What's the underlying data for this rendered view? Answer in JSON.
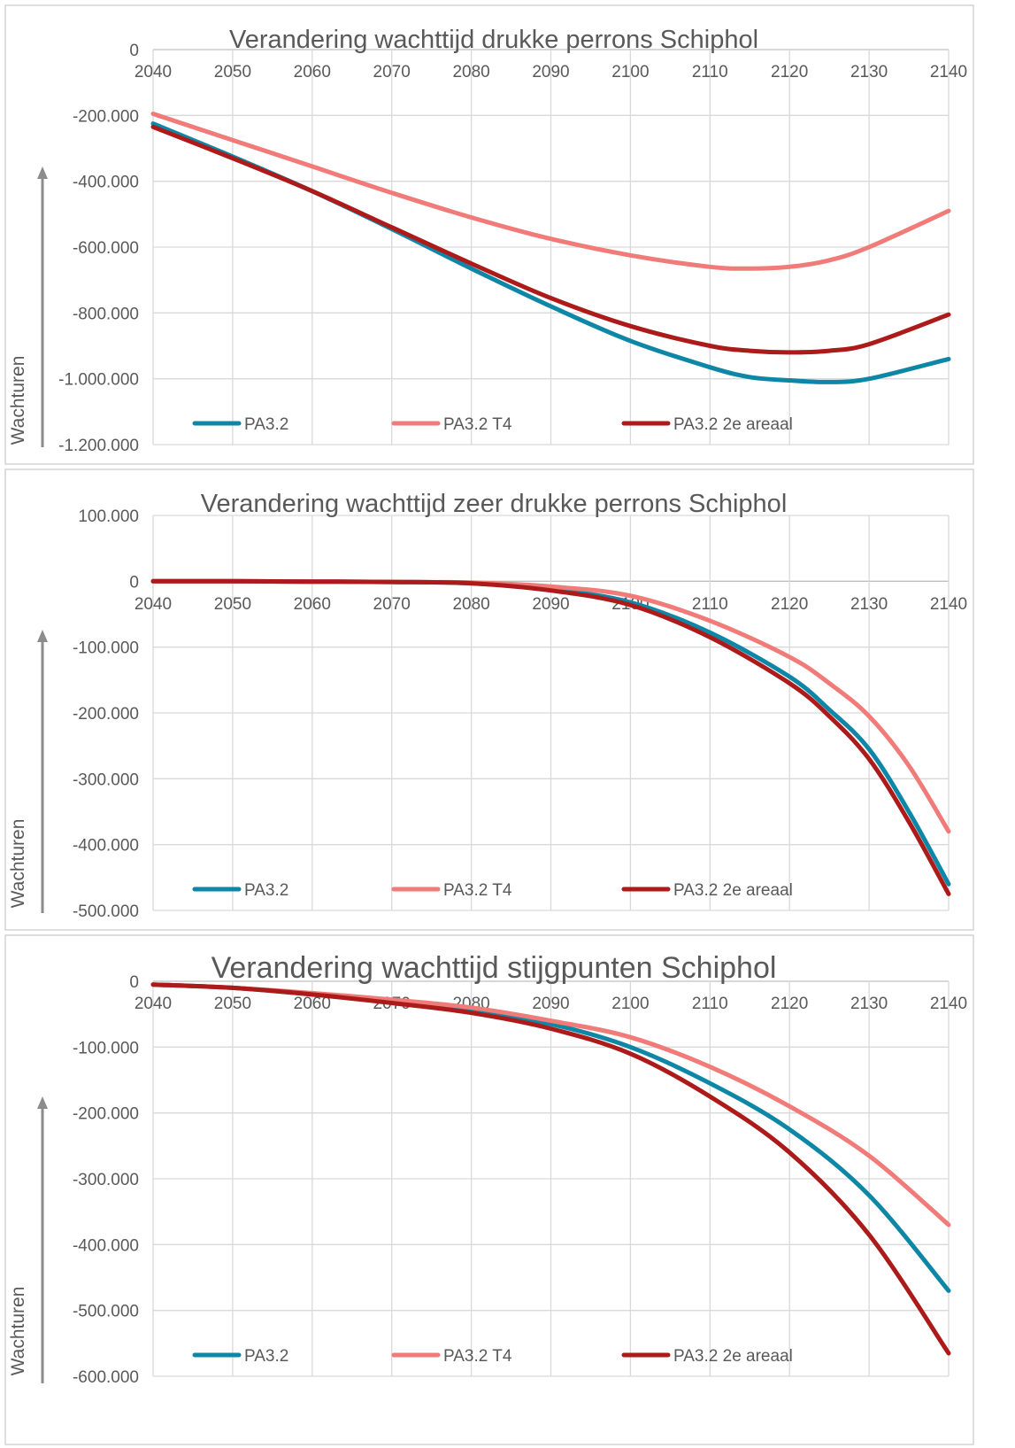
{
  "colors": {
    "PA3.2": "#0e87a6",
    "PA3.2 T4": "#f07b78",
    "PA3.2 2e areaal": "#ad1a1a",
    "axis_arrow": "#8c8c8c"
  },
  "chart_data": [
    {
      "type": "line",
      "title": "Verandering wachttijd drukke perrons Schiphol",
      "ylabel": "Wachturen",
      "xlim": [
        2040,
        2140
      ],
      "ylim": [
        -1200000,
        0
      ],
      "x_ticks": [
        "2040",
        "2050",
        "2060",
        "2070",
        "2080",
        "2090",
        "2100",
        "2110",
        "2120",
        "2130",
        "2140"
      ],
      "y_ticks": [
        "0",
        "-200.000",
        "-400.000",
        "-600.000",
        "-800.000",
        "-1.000.000",
        "-1.200.000"
      ],
      "y_tick_values": [
        0,
        -200000,
        -400000,
        -600000,
        -800000,
        -1000000,
        -1200000
      ],
      "grid": true,
      "legend_position": "bottom",
      "x": [
        2040,
        2050,
        2060,
        2070,
        2080,
        2090,
        2100,
        2110,
        2115,
        2120,
        2125,
        2130,
        2140
      ],
      "series": [
        {
          "name": "PA3.2",
          "values": [
            -225000,
            -325000,
            -430000,
            -545000,
            -665000,
            -780000,
            -885000,
            -965000,
            -995000,
            -1005000,
            -1010000,
            -1000000,
            -940000
          ]
        },
        {
          "name": "PA3.2 T4",
          "values": [
            -195000,
            -275000,
            -355000,
            -435000,
            -510000,
            -575000,
            -625000,
            -660000,
            -665000,
            -660000,
            -640000,
            -600000,
            -490000
          ]
        },
        {
          "name": "PA3.2 2e areaal",
          "values": [
            -235000,
            -330000,
            -430000,
            -540000,
            -650000,
            -755000,
            -840000,
            -900000,
            -915000,
            -920000,
            -915000,
            -895000,
            -805000
          ]
        }
      ]
    },
    {
      "type": "line",
      "title": "Verandering wachttijd zeer drukke perrons Schiphol",
      "ylabel": "Wachturen",
      "xlim": [
        2040,
        2140
      ],
      "ylim": [
        -500000,
        100000
      ],
      "x_ticks": [
        "2040",
        "2050",
        "2060",
        "2070",
        "2080",
        "2090",
        "2100",
        "2110",
        "2120",
        "2130",
        "2140"
      ],
      "y_ticks": [
        "100.000",
        "0",
        "-100.000",
        "-200.000",
        "-300.000",
        "-400.000",
        "-500.000"
      ],
      "y_tick_values": [
        100000,
        0,
        -100000,
        -200000,
        -300000,
        -400000,
        -500000
      ],
      "grid": true,
      "legend_position": "bottom",
      "x": [
        2040,
        2050,
        2060,
        2070,
        2080,
        2090,
        2100,
        2110,
        2120,
        2125,
        2130,
        2135,
        2140
      ],
      "series": [
        {
          "name": "PA3.2",
          "values": [
            0,
            0,
            -500,
            -1000,
            -3000,
            -12000,
            -32000,
            -78000,
            -145000,
            -195000,
            -255000,
            -350000,
            -460000
          ]
        },
        {
          "name": "PA3.2 T4",
          "values": [
            0,
            0,
            -500,
            -1000,
            -2000,
            -8000,
            -22000,
            -60000,
            -115000,
            -155000,
            -205000,
            -280000,
            -380000
          ]
        },
        {
          "name": "PA3.2 2e areaal",
          "values": [
            0,
            0,
            -500,
            -1000,
            -3000,
            -14000,
            -36000,
            -85000,
            -155000,
            -205000,
            -270000,
            -365000,
            -475000
          ]
        }
      ]
    },
    {
      "type": "line",
      "title": "Verandering wachttijd stijgpunten Schiphol",
      "ylabel": "Wachturen",
      "xlim": [
        2040,
        2140
      ],
      "ylim": [
        -600000,
        0
      ],
      "x_ticks": [
        "2040",
        "2050",
        "2060",
        "2070",
        "2080",
        "2090",
        "2100",
        "2110",
        "2120",
        "2130",
        "2140"
      ],
      "y_ticks": [
        "0",
        "-100.000",
        "-200.000",
        "-300.000",
        "-400.000",
        "-500.000",
        "-600.000"
      ],
      "y_tick_values": [
        0,
        -100000,
        -200000,
        -300000,
        -400000,
        -500000,
        -600000
      ],
      "grid": true,
      "legend_position": "bottom",
      "x": [
        2040,
        2050,
        2060,
        2070,
        2080,
        2090,
        2100,
        2110,
        2120,
        2130,
        2140
      ],
      "series": [
        {
          "name": "PA3.2",
          "values": [
            -5000,
            -10000,
            -20000,
            -32000,
            -45000,
            -65000,
            -100000,
            -155000,
            -225000,
            -325000,
            -470000
          ]
        },
        {
          "name": "PA3.2 T4",
          "values": [
            -5000,
            -10000,
            -18000,
            -28000,
            -40000,
            -60000,
            -85000,
            -130000,
            -190000,
            -265000,
            -370000
          ]
        },
        {
          "name": "PA3.2 2e areaal",
          "values": [
            -5000,
            -10000,
            -20000,
            -33000,
            -48000,
            -72000,
            -110000,
            -175000,
            -260000,
            -385000,
            -565000
          ]
        }
      ]
    }
  ]
}
